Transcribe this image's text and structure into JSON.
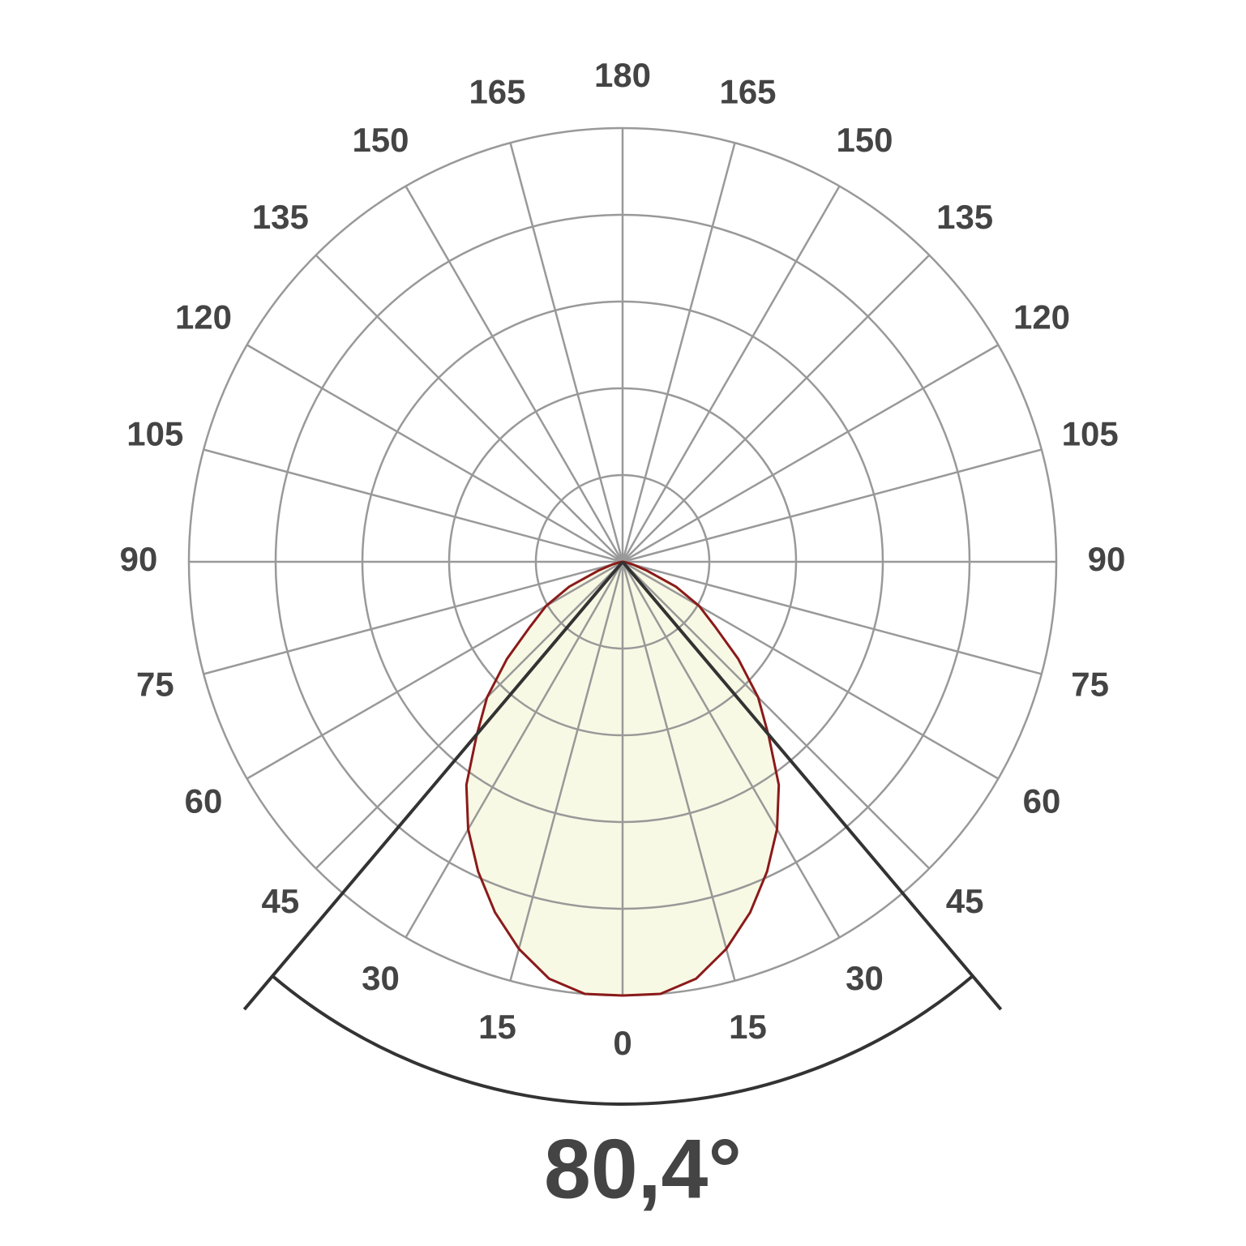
{
  "chart_data": {
    "type": "polar",
    "angle_ticks": [
      {
        "value": -165,
        "label": "165"
      },
      {
        "value": -150,
        "label": "150"
      },
      {
        "value": -135,
        "label": "135"
      },
      {
        "value": -120,
        "label": "120"
      },
      {
        "value": -105,
        "label": "105"
      },
      {
        "value": -90,
        "label": "90"
      },
      {
        "value": -75,
        "label": "75"
      },
      {
        "value": -60,
        "label": "60"
      },
      {
        "value": -45,
        "label": "45"
      },
      {
        "value": -30,
        "label": "30"
      },
      {
        "value": -15,
        "label": "15"
      },
      0,
      15,
      30,
      45,
      60,
      75,
      90,
      105,
      120,
      135,
      150,
      165,
      180
    ],
    "rlim": [
      0,
      5
    ],
    "rticks": [
      1,
      2,
      3,
      4,
      5
    ],
    "series": [
      {
        "color": "#8b1a1a",
        "fill": "#f8f9e4",
        "x": [
          -90,
          -85,
          -80,
          -75,
          -70,
          -65,
          -60,
          -55,
          -50,
          -45,
          -40,
          -35,
          -30,
          -25,
          -20,
          -15,
          -10,
          -5,
          0,
          5,
          10,
          15,
          20,
          25,
          30,
          35,
          40,
          45,
          50,
          55,
          60,
          65,
          70,
          75,
          80,
          85,
          90
        ],
        "values": [
          0,
          0.01,
          0.04,
          0.12,
          0.3,
          0.68,
          1.02,
          1.3,
          1.74,
          2.21,
          2.62,
          3.14,
          3.56,
          3.94,
          4.3,
          4.62,
          4.88,
          5.0,
          5.0,
          5.0,
          4.88,
          4.62,
          4.3,
          3.94,
          3.56,
          3.14,
          2.62,
          2.21,
          1.74,
          1.3,
          1.02,
          0.68,
          0.3,
          0.12,
          0.04,
          0.01,
          0
        ]
      }
    ],
    "beam_angle": 80.4,
    "beam_angle_label": "80,4°"
  }
}
